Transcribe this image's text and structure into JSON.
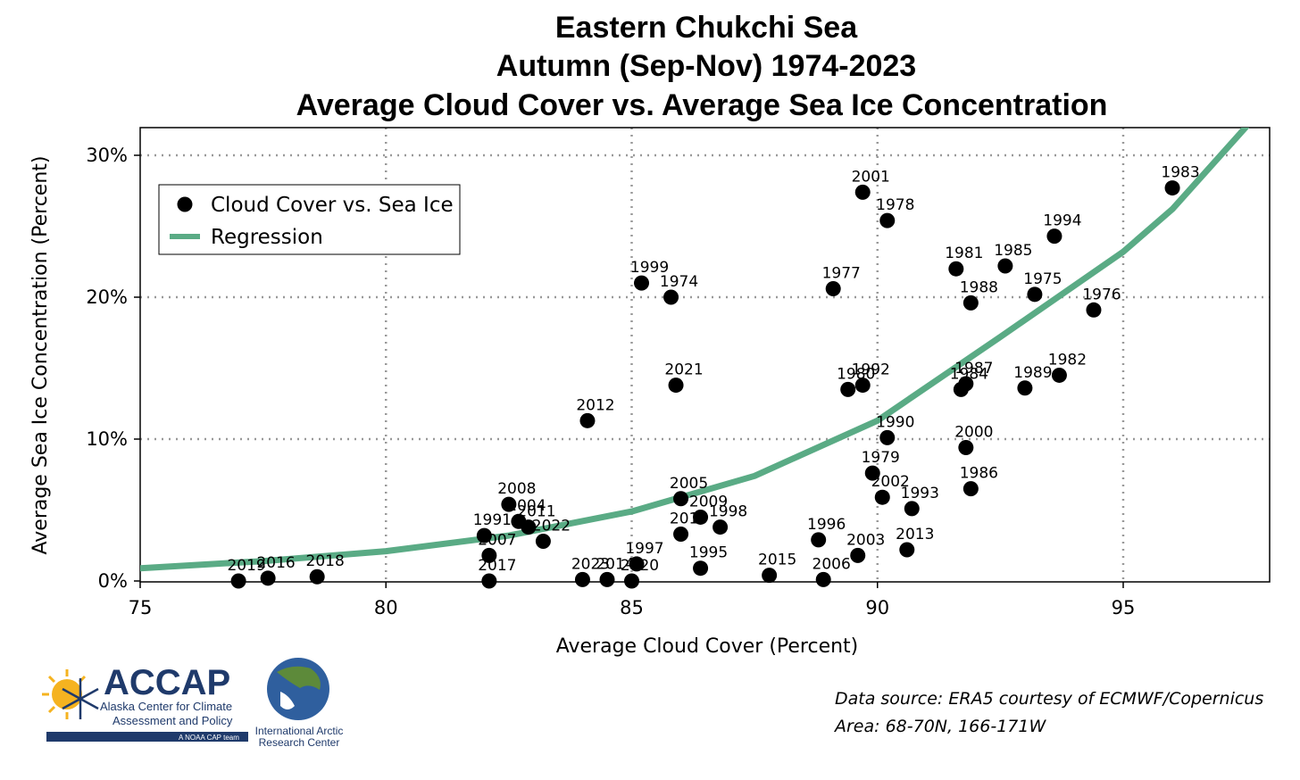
{
  "chart_data": {
    "type": "scatter",
    "title": [
      "Eastern Chukchi Sea",
      "Autumn (Sep-Nov) 1974-2023",
      "Average Cloud Cover vs. Average Sea Ice Concentration"
    ],
    "xlabel": "Average Cloud Cover (Percent)",
    "ylabel": "Average Sea Ice Concentration (Percent)",
    "xlim": [
      75,
      98
    ],
    "ylim": [
      0,
      32
    ],
    "xticks": [
      75,
      80,
      85,
      90,
      95
    ],
    "xtick_labels": [
      "75",
      "80",
      "85",
      "90",
      "95"
    ],
    "yticks": [
      0,
      10,
      20,
      30
    ],
    "ytick_labels": [
      "0%",
      "10%",
      "20%",
      "30%"
    ],
    "grid": "dotted",
    "legend_position": "upper-left",
    "legend": [
      "Cloud Cover vs. Sea Ice",
      "Regression"
    ],
    "colors": {
      "points": "#000000",
      "regression": "#5aab85",
      "grid": "#999999"
    },
    "series": [
      {
        "name": "Cloud Cover vs. Sea Ice",
        "points": [
          {
            "label": "2019",
            "x": 77.0,
            "y": 0.0
          },
          {
            "label": "2016",
            "x": 77.6,
            "y": 0.2
          },
          {
            "label": "2018",
            "x": 78.6,
            "y": 0.3
          },
          {
            "label": "2012",
            "x": 84.1,
            "y": 11.3
          },
          {
            "label": "1999",
            "x": 85.2,
            "y": 21.0
          },
          {
            "label": "1974",
            "x": 85.8,
            "y": 20.0
          },
          {
            "label": "2021",
            "x": 85.9,
            "y": 13.8
          },
          {
            "label": "2008",
            "x": 82.5,
            "y": 5.4
          },
          {
            "label": "2004",
            "x": 82.7,
            "y": 4.2
          },
          {
            "label": "2011",
            "x": 82.9,
            "y": 3.8
          },
          {
            "label": "2022",
            "x": 83.2,
            "y": 2.8
          },
          {
            "label": "1991",
            "x": 82.0,
            "y": 3.2
          },
          {
            "label": "2007",
            "x": 82.1,
            "y": 1.8
          },
          {
            "label": "2017",
            "x": 82.1,
            "y": 0.0
          },
          {
            "label": "2023",
            "x": 84.0,
            "y": 0.1
          },
          {
            "label": "2014",
            "x": 84.5,
            "y": 0.1
          },
          {
            "label": "2020",
            "x": 85.0,
            "y": 0.0
          },
          {
            "label": "1997",
            "x": 85.1,
            "y": 1.2
          },
          {
            "label": "2005",
            "x": 86.0,
            "y": 5.8
          },
          {
            "label": "2009",
            "x": 86.4,
            "y": 4.5
          },
          {
            "label": "2010",
            "x": 86.0,
            "y": 3.3
          },
          {
            "label": "1998",
            "x": 86.8,
            "y": 3.8
          },
          {
            "label": "1995",
            "x": 86.4,
            "y": 0.9
          },
          {
            "label": "2015",
            "x": 87.8,
            "y": 0.4
          },
          {
            "label": "1996",
            "x": 88.8,
            "y": 2.9
          },
          {
            "label": "2006",
            "x": 88.9,
            "y": 0.1
          },
          {
            "label": "2003",
            "x": 89.6,
            "y": 1.8
          },
          {
            "label": "2001",
            "x": 89.7,
            "y": 27.4
          },
          {
            "label": "1978",
            "x": 90.2,
            "y": 25.4
          },
          {
            "label": "1977",
            "x": 89.1,
            "y": 20.6
          },
          {
            "label": "1980",
            "x": 89.4,
            "y": 13.5
          },
          {
            "label": "1992",
            "x": 89.7,
            "y": 13.8
          },
          {
            "label": "1990",
            "x": 90.2,
            "y": 10.1
          },
          {
            "label": "1979",
            "x": 89.9,
            "y": 7.6
          },
          {
            "label": "2002",
            "x": 90.1,
            "y": 5.9
          },
          {
            "label": "1993",
            "x": 90.7,
            "y": 5.1
          },
          {
            "label": "2013",
            "x": 90.6,
            "y": 2.2
          },
          {
            "label": "1981",
            "x": 91.6,
            "y": 22.0
          },
          {
            "label": "1988",
            "x": 91.9,
            "y": 19.6
          },
          {
            "label": "1985",
            "x": 92.6,
            "y": 22.2
          },
          {
            "label": "1975",
            "x": 93.2,
            "y": 20.2
          },
          {
            "label": "1994",
            "x": 93.6,
            "y": 24.3
          },
          {
            "label": "1984",
            "x": 91.7,
            "y": 13.5
          },
          {
            "label": "1987",
            "x": 91.8,
            "y": 13.9
          },
          {
            "label": "1989",
            "x": 93.0,
            "y": 13.6
          },
          {
            "label": "1982",
            "x": 93.7,
            "y": 14.5
          },
          {
            "label": "2000",
            "x": 91.8,
            "y": 9.4
          },
          {
            "label": "1986",
            "x": 91.9,
            "y": 6.5
          },
          {
            "label": "1976",
            "x": 94.4,
            "y": 19.1
          },
          {
            "label": "1983",
            "x": 96.0,
            "y": 27.7
          }
        ]
      },
      {
        "name": "Regression",
        "curve": [
          {
            "x": 75.0,
            "y": 0.9
          },
          {
            "x": 77.5,
            "y": 1.4
          },
          {
            "x": 80.0,
            "y": 2.1
          },
          {
            "x": 82.5,
            "y": 3.2
          },
          {
            "x": 85.0,
            "y": 4.9
          },
          {
            "x": 87.5,
            "y": 7.4
          },
          {
            "x": 90.0,
            "y": 11.3
          },
          {
            "x": 92.5,
            "y": 17.2
          },
          {
            "x": 95.0,
            "y": 23.2
          },
          {
            "x": 96.0,
            "y": 26.2
          },
          {
            "x": 97.5,
            "y": 32.0
          }
        ]
      }
    ]
  },
  "footer": {
    "source_line1": "Data source: ERA5 courtesy of ECMWF/Copernicus",
    "source_line2": "Area: 68-70N, 166-171W"
  },
  "logos": {
    "accap_name": "ACCAP",
    "accap_line1": "Alaska Center for Climate",
    "accap_line2": "Assessment and Policy",
    "accap_tagline": "A NOAA CAP team",
    "iarc_line1": "International Arctic",
    "iarc_line2": "Research Center"
  }
}
